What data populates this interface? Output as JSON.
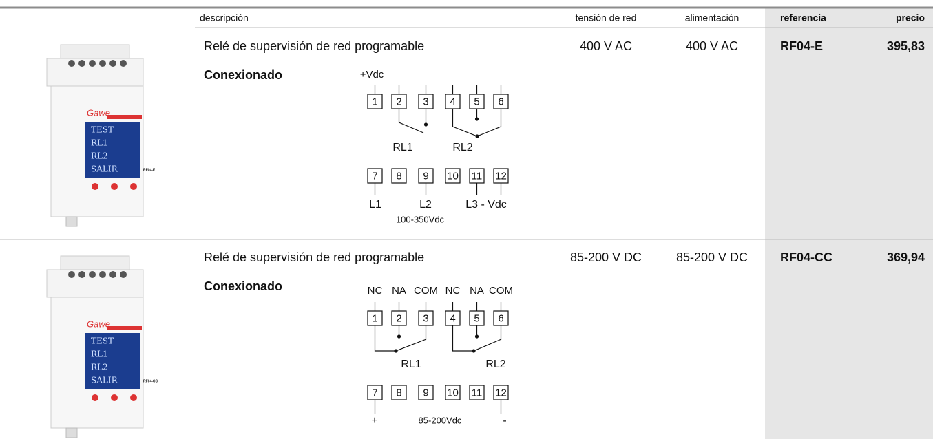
{
  "header": {
    "columns": [
      "descripción",
      "tensión de red",
      "alimentación",
      "referencia",
      "precio"
    ]
  },
  "rows": [
    {
      "description": "Relé de supervisión de red programable",
      "mains_voltage": "400 V AC",
      "supply": "400 V AC",
      "reference": "RF04-E",
      "price": "395,83",
      "connection_title": "Conexionado",
      "diagram": {
        "terminals": [
          "1",
          "2",
          "3",
          "4",
          "5",
          "6",
          "7",
          "8",
          "9",
          "10",
          "11",
          "12"
        ],
        "top_labels": [
          "+Vdc"
        ],
        "relays": [
          "RL1",
          "RL2"
        ],
        "bottom_labels": [
          "L1",
          "L2",
          "L3 - Vdc"
        ],
        "note": "100-350Vdc"
      },
      "product_image": {
        "brand": "Gawe",
        "screen": [
          "TEST",
          "RL1",
          "RL2",
          "SALIR"
        ],
        "model": "RF04-E"
      }
    },
    {
      "description": "Relé de supervisión de red programable",
      "mains_voltage": "85-200 V DC",
      "supply": "85-200 V DC",
      "reference": "RF04-CC",
      "price": "369,94",
      "connection_title": "Conexionado",
      "diagram": {
        "terminals": [
          "1",
          "2",
          "3",
          "4",
          "5",
          "6",
          "7",
          "8",
          "9",
          "10",
          "11",
          "12"
        ],
        "top_labels": [
          "NC",
          "NA",
          "COM",
          "NC",
          "NA",
          "COM"
        ],
        "relays": [
          "RL1",
          "RL2"
        ],
        "bottom_labels": [
          "+",
          "-"
        ],
        "note": "85-200Vdc"
      },
      "product_image": {
        "brand": "Gawe",
        "screen": [
          "TEST",
          "RL1",
          "RL2",
          "SALIR"
        ],
        "model": "RF04-CC"
      }
    }
  ]
}
